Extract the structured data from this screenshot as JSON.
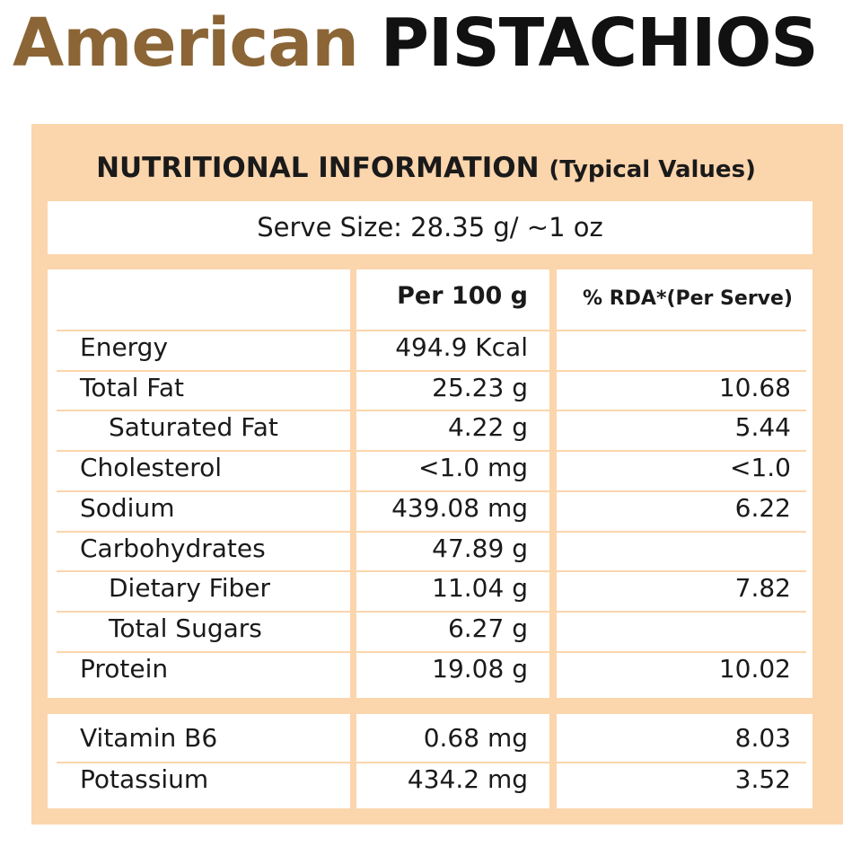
{
  "title": {
    "brand": "American",
    "product": "PISTACHIOS"
  },
  "heading": {
    "main": "NUTRITIONAL INFORMATION",
    "sub": "(Typical Values)"
  },
  "serve_size": "Serve Size: 28.35 g/ ~1 oz",
  "columns": {
    "per100": "Per 100 g",
    "rda": "% RDA*(Per Serve)"
  },
  "colors": {
    "brand": "#8b6535",
    "panel": "#fbd5ac"
  },
  "rows": [
    {
      "name": "Energy",
      "per100": "494.9 Kcal",
      "rda": "",
      "indent": false
    },
    {
      "name": "Total Fat",
      "per100": "25.23 g",
      "rda": "10.68",
      "indent": false
    },
    {
      "name": "Saturated Fat",
      "per100": "4.22 g",
      "rda": "5.44",
      "indent": true
    },
    {
      "name": "Cholesterol",
      "per100": "<1.0 mg",
      "rda": "<1.0",
      "indent": false
    },
    {
      "name": "Sodium",
      "per100": "439.08 mg",
      "rda": "6.22",
      "indent": false
    },
    {
      "name": "Carbohydrates",
      "per100": "47.89 g",
      "rda": "",
      "indent": false
    },
    {
      "name": "Dietary Fiber",
      "per100": "11.04 g",
      "rda": "7.82",
      "indent": true
    },
    {
      "name": "Total Sugars",
      "per100": "6.27 g",
      "rda": "",
      "indent": true
    },
    {
      "name": "Protein",
      "per100": "19.08 g",
      "rda": "10.02",
      "indent": false
    }
  ],
  "micros": [
    {
      "name": "Vitamin B6",
      "per100": "0.68 mg",
      "rda": "8.03"
    },
    {
      "name": "Potassium",
      "per100": "434.2 mg",
      "rda": "3.52"
    }
  ]
}
